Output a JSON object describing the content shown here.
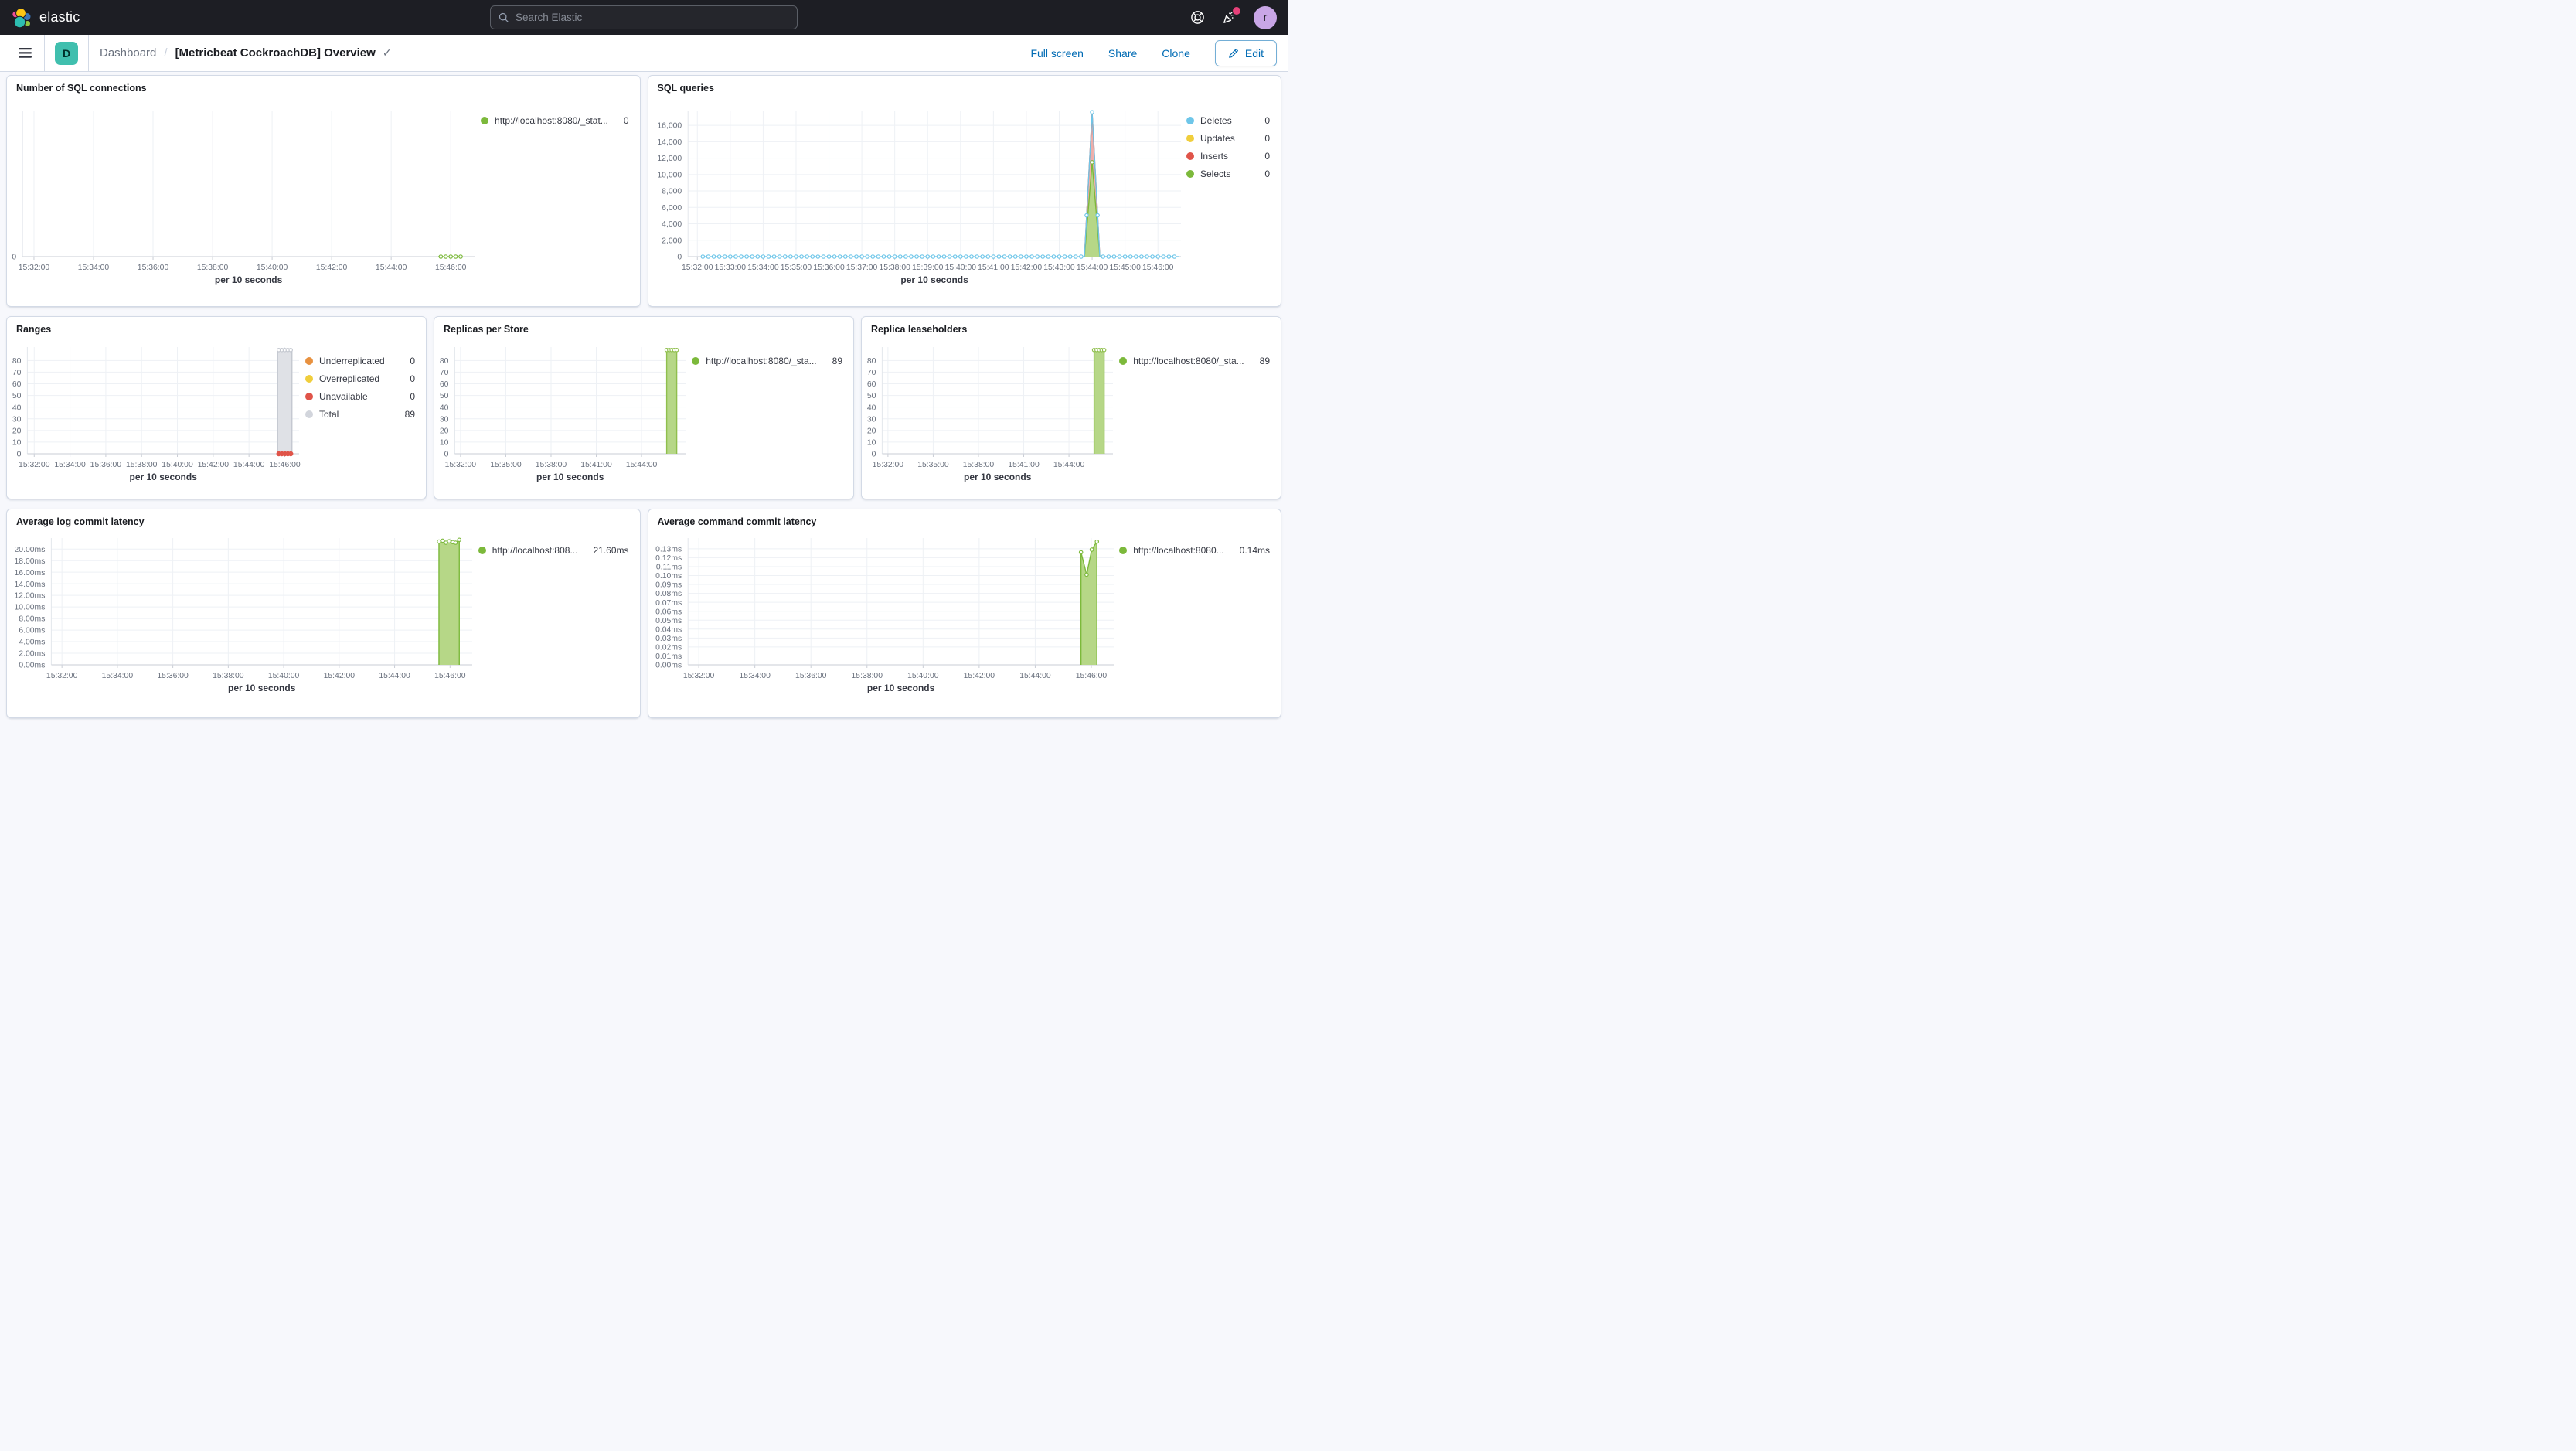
{
  "topbar": {
    "brand": "elastic",
    "search_placeholder": "Search Elastic",
    "avatar_initial": "r"
  },
  "toolbar": {
    "space_badge": "D",
    "breadcrumb_root": "Dashboard",
    "title": "[Metricbeat CockroachDB] Overview",
    "actions": [
      "Full screen",
      "Share",
      "Clone"
    ],
    "edit_label": "Edit"
  },
  "colors": {
    "accent_blue": "#006BB4",
    "topbar_bg": "#1D1E24",
    "panel_border": "#D3DAE6",
    "series_green": "#7CB93B",
    "series_blue": "#6EC6E9",
    "series_yellow": "#F0CE3C",
    "series_red": "#E05449",
    "series_orange": "#E8913F",
    "series_gray": "#D2D5DC",
    "notification_pink": "#E7417A",
    "space_teal": "#40BFAE",
    "avatar_purple": "#C9A6E6"
  },
  "panels": [
    {
      "title": "Number of SQL connections",
      "legend": [
        {
          "label": "http://localhost:8080/_stat...",
          "value": "0",
          "color": "#7CB93B"
        }
      ]
    },
    {
      "title": "SQL queries",
      "legend": [
        {
          "label": "Deletes",
          "value": "0",
          "color": "#6EC6E9"
        },
        {
          "label": "Updates",
          "value": "0",
          "color": "#F0CE3C"
        },
        {
          "label": "Inserts",
          "value": "0",
          "color": "#E05449"
        },
        {
          "label": "Selects",
          "value": "0",
          "color": "#7CB93B"
        }
      ]
    },
    {
      "title": "Ranges",
      "legend": [
        {
          "label": "Underreplicated",
          "value": "0",
          "color": "#E8913F"
        },
        {
          "label": "Overreplicated",
          "value": "0",
          "color": "#F0CE3C"
        },
        {
          "label": "Unavailable",
          "value": "0",
          "color": "#E05449"
        },
        {
          "label": "Total",
          "value": "89",
          "color": "#D2D5DC"
        }
      ]
    },
    {
      "title": "Replicas per Store",
      "legend": [
        {
          "label": "http://localhost:8080/_sta...",
          "value": "89",
          "color": "#7CB93B"
        }
      ]
    },
    {
      "title": "Replica leaseholders",
      "legend": [
        {
          "label": "http://localhost:8080/_sta...",
          "value": "89",
          "color": "#7CB93B"
        }
      ]
    },
    {
      "title": "Average log commit latency",
      "legend": [
        {
          "label": "http://localhost:808...",
          "value": "21.60ms",
          "color": "#7CB93B"
        }
      ]
    },
    {
      "title": "Average command commit latency",
      "legend": [
        {
          "label": "http://localhost:8080...",
          "value": "0.14ms",
          "color": "#7CB93B"
        }
      ]
    }
  ],
  "charts": {
    "conn": {
      "type": "line",
      "xtitle": "per 10 seconds",
      "xlim": [
        97,
        1008
      ],
      "ylim": [
        0,
        1
      ],
      "yticks": [
        [
          0,
          "0"
        ]
      ],
      "xticks": [
        [
          120,
          "15:32:00"
        ],
        [
          240,
          "15:34:00"
        ],
        [
          360,
          "15:36:00"
        ],
        [
          480,
          "15:38:00"
        ],
        [
          600,
          "15:40:00"
        ],
        [
          720,
          "15:42:00"
        ],
        [
          840,
          "15:44:00"
        ],
        [
          960,
          "15:46:00"
        ]
      ],
      "series": [
        {
          "type": "line",
          "color": "#7CB93B",
          "width": 1.2,
          "marker": "hollow",
          "marker_step": 10,
          "points": [
            [
              935,
              0
            ],
            [
              982,
              0
            ]
          ]
        }
      ]
    },
    "queries": {
      "type": "area",
      "xtitle": "per 10 seconds",
      "xlim": [
        103,
        1002
      ],
      "ylim": [
        0,
        17800
      ],
      "yticks": [
        [
          0,
          "0"
        ],
        [
          2000,
          "2,000"
        ],
        [
          4000,
          "4,000"
        ],
        [
          6000,
          "6,000"
        ],
        [
          8000,
          "8,000"
        ],
        [
          10000,
          "10,000"
        ],
        [
          12000,
          "12,000"
        ],
        [
          14000,
          "14,000"
        ],
        [
          16000,
          "16,000"
        ]
      ],
      "xticks": [
        [
          120,
          "15:32:00"
        ],
        [
          180,
          "15:33:00"
        ],
        [
          240,
          "15:34:00"
        ],
        [
          300,
          "15:35:00"
        ],
        [
          360,
          "15:36:00"
        ],
        [
          420,
          "15:37:00"
        ],
        [
          480,
          "15:38:00"
        ],
        [
          540,
          "15:39:00"
        ],
        [
          600,
          "15:40:00"
        ],
        [
          660,
          "15:41:00"
        ],
        [
          720,
          "15:42:00"
        ],
        [
          780,
          "15:43:00"
        ],
        [
          840,
          "15:44:00"
        ],
        [
          900,
          "15:45:00"
        ],
        [
          960,
          "15:46:00"
        ]
      ],
      "series": [
        {
          "type": "area",
          "color": "#E05449",
          "fill": "rgba(224,84,73,0.45)",
          "points": [
            [
              826,
              0
            ],
            [
              840,
              17600
            ],
            [
              854,
              0
            ]
          ]
        },
        {
          "type": "area",
          "color": "#7CB93B",
          "fill": "#B6D787",
          "marker": "hollow",
          "points": [
            [
              826,
              0
            ],
            [
              840,
              11500
            ],
            [
              854,
              0
            ]
          ],
          "marker_pts": [
            [
              840,
              11500
            ]
          ]
        },
        {
          "type": "line",
          "color": "#6EC6E9",
          "width": 1.3,
          "marker": "hollow",
          "marker_step": 10,
          "points": [
            [
              130,
              0
            ],
            [
              826,
              0
            ],
            [
              840,
              17600
            ],
            [
              854,
              0
            ],
            [
              998,
              0
            ]
          ]
        }
      ]
    },
    "ranges": {
      "type": "area",
      "xtitle": "per 10 seconds",
      "xlim": [
        97,
        1008
      ],
      "ylim": [
        0,
        91.5
      ],
      "yticks": [
        [
          0,
          "0"
        ],
        [
          10,
          "10"
        ],
        [
          20,
          "20"
        ],
        [
          30,
          "30"
        ],
        [
          40,
          "40"
        ],
        [
          50,
          "50"
        ],
        [
          60,
          "60"
        ],
        [
          70,
          "70"
        ],
        [
          80,
          "80"
        ]
      ],
      "xticks": [
        [
          120,
          "15:32:00"
        ],
        [
          240,
          "15:34:00"
        ],
        [
          360,
          "15:36:00"
        ],
        [
          480,
          "15:38:00"
        ],
        [
          600,
          "15:40:00"
        ],
        [
          720,
          "15:42:00"
        ],
        [
          840,
          "15:44:00"
        ],
        [
          960,
          "15:46:00"
        ]
      ],
      "series": [
        {
          "type": "area",
          "color": "#C4C8D0",
          "fill": "#DFE1E6",
          "marker": "hollow",
          "marker_step": 10,
          "points": [
            [
              936,
              89
            ],
            [
              984,
              89
            ]
          ]
        },
        {
          "type": "line",
          "color": "#E05449",
          "no_line": true,
          "marker": "solid",
          "marker_step": 10,
          "points": [
            [
              938,
              0
            ],
            [
              982,
              0
            ]
          ]
        }
      ]
    },
    "replicas": {
      "type": "area",
      "xtitle": "per 10 seconds",
      "xlim": [
        97,
        1015
      ],
      "ylim": [
        0,
        91.5
      ],
      "yticks": [
        [
          0,
          "0"
        ],
        [
          10,
          "10"
        ],
        [
          20,
          "20"
        ],
        [
          30,
          "30"
        ],
        [
          40,
          "40"
        ],
        [
          50,
          "50"
        ],
        [
          60,
          "60"
        ],
        [
          70,
          "70"
        ],
        [
          80,
          "80"
        ]
      ],
      "xticks": [
        [
          120,
          "15:32:00"
        ],
        [
          300,
          "15:35:00"
        ],
        [
          480,
          "15:38:00"
        ],
        [
          660,
          "15:41:00"
        ],
        [
          840,
          "15:44:00"
        ]
      ],
      "series": [
        {
          "type": "area",
          "color": "#8FBF4D",
          "fill": "#B6D787",
          "marker": "hollow",
          "marker_step": 10,
          "points": [
            [
              940,
              89
            ],
            [
              980,
              89
            ]
          ]
        }
      ]
    },
    "leaseholders": {
      "type": "area",
      "xtitle": "per 10 seconds",
      "xlim": [
        97,
        1015
      ],
      "ylim": [
        0,
        91.5
      ],
      "yticks": [
        [
          0,
          "0"
        ],
        [
          10,
          "10"
        ],
        [
          20,
          "20"
        ],
        [
          30,
          "30"
        ],
        [
          40,
          "40"
        ],
        [
          50,
          "50"
        ],
        [
          60,
          "60"
        ],
        [
          70,
          "70"
        ],
        [
          80,
          "80"
        ]
      ],
      "xticks": [
        [
          120,
          "15:32:00"
        ],
        [
          300,
          "15:35:00"
        ],
        [
          480,
          "15:38:00"
        ],
        [
          660,
          "15:41:00"
        ],
        [
          840,
          "15:44:00"
        ]
      ],
      "series": [
        {
          "type": "area",
          "color": "#8FBF4D",
          "fill": "#B6D787",
          "marker": "hollow",
          "marker_step": 10,
          "points": [
            [
              940,
              89
            ],
            [
              980,
              89
            ]
          ]
        }
      ]
    },
    "loglat": {
      "type": "area",
      "xtitle": "per 10 seconds",
      "xlim": [
        97,
        1008
      ],
      "ylim": [
        0,
        21.9
      ],
      "yticks": [
        [
          0,
          "0.00ms"
        ],
        [
          2,
          "2.00ms"
        ],
        [
          4,
          "4.00ms"
        ],
        [
          6,
          "6.00ms"
        ],
        [
          8,
          "8.00ms"
        ],
        [
          10,
          "10.00ms"
        ],
        [
          12,
          "12.00ms"
        ],
        [
          14,
          "14.00ms"
        ],
        [
          16,
          "16.00ms"
        ],
        [
          18,
          "18.00ms"
        ],
        [
          20,
          "20.00ms"
        ]
      ],
      "xticks": [
        [
          120,
          "15:32:00"
        ],
        [
          240,
          "15:34:00"
        ],
        [
          360,
          "15:36:00"
        ],
        [
          480,
          "15:38:00"
        ],
        [
          600,
          "15:40:00"
        ],
        [
          720,
          "15:42:00"
        ],
        [
          840,
          "15:44:00"
        ],
        [
          960,
          "15:46:00"
        ]
      ],
      "series": [
        {
          "type": "area",
          "color": "#7CB93B",
          "fill": "#B6D787",
          "marker": "hollow",
          "markers": "points",
          "points": [
            [
              936,
              21.3
            ],
            [
              944,
              21.45
            ],
            [
              951,
              21.1
            ],
            [
              958,
              21.35
            ],
            [
              966,
              21.2
            ],
            [
              972,
              21.1
            ],
            [
              980,
              21.6
            ]
          ]
        }
      ]
    },
    "cmdlat": {
      "type": "area",
      "xtitle": "per 10 seconds",
      "xlim": [
        97,
        1008
      ],
      "ylim": [
        0,
        0.142
      ],
      "yticks": [
        [
          0,
          "0.00ms"
        ],
        [
          0.01,
          "0.01ms"
        ],
        [
          0.02,
          "0.02ms"
        ],
        [
          0.03,
          "0.03ms"
        ],
        [
          0.04,
          "0.04ms"
        ],
        [
          0.05,
          "0.05ms"
        ],
        [
          0.06,
          "0.06ms"
        ],
        [
          0.07,
          "0.07ms"
        ],
        [
          0.08,
          "0.08ms"
        ],
        [
          0.09,
          "0.09ms"
        ],
        [
          0.1,
          "0.10ms"
        ],
        [
          0.11,
          "0.11ms"
        ],
        [
          0.12,
          "0.12ms"
        ],
        [
          0.13,
          "0.13ms"
        ]
      ],
      "xticks": [
        [
          120,
          "15:32:00"
        ],
        [
          240,
          "15:34:00"
        ],
        [
          360,
          "15:36:00"
        ],
        [
          480,
          "15:38:00"
        ],
        [
          600,
          "15:40:00"
        ],
        [
          720,
          "15:42:00"
        ],
        [
          840,
          "15:44:00"
        ],
        [
          960,
          "15:46:00"
        ]
      ],
      "series": [
        {
          "type": "area",
          "color": "#7CB93B",
          "fill": "#B6D787",
          "marker": "hollow",
          "markers": "points",
          "points": [
            [
              938,
              0.126
            ],
            [
              950,
              0.101
            ],
            [
              961,
              0.129
            ],
            [
              972,
              0.138
            ]
          ]
        }
      ]
    }
  }
}
